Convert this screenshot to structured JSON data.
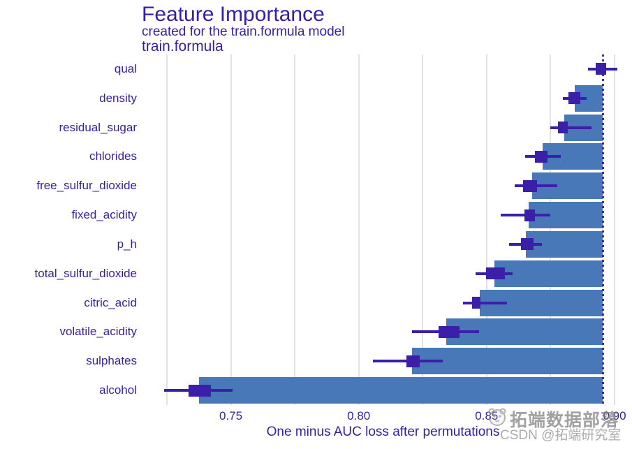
{
  "title": "Feature Importance",
  "subtitle": "created for the train.formula model",
  "facet_label": "train.formula",
  "watermark": {
    "icon": "mascot-face-icon",
    "line1": "拓端数据部落",
    "line2": "CSDN @拓端研究室"
  },
  "chart_data": {
    "type": "bar",
    "orientation": "horizontal",
    "title": "Feature Importance",
    "subtitle": "created for the train.formula model",
    "facet": "train.formula",
    "xlabel": "One minus AUC loss after permutations",
    "xlim": [
      0.716,
      0.903
    ],
    "x_ticks": [
      0.75,
      0.8,
      0.85,
      0.9
    ],
    "x_tick_labels": [
      "0.75",
      "0.80",
      "0.85",
      "0.90"
    ],
    "gridlines": [
      0.725,
      0.75,
      0.775,
      0.8,
      0.825,
      0.85,
      0.875,
      0.9
    ],
    "grid": true,
    "full_model_loss": 0.8954,
    "bars_end_at": "full_model_loss",
    "categories": [
      "qual",
      "density",
      "residual_sugar",
      "chlorides",
      "free_sulfur_dioxide",
      "fixed_acidity",
      "p_h",
      "total_sulfur_dioxide",
      "citric_acid",
      "volatile_acidity",
      "sulphates",
      "alcohol"
    ],
    "features": [
      {
        "name": "qual",
        "dropout_loss": 0.8954,
        "box": [
          0.8926,
          0.8966
        ],
        "whiskers": [
          0.8896,
          0.901
        ]
      },
      {
        "name": "density",
        "dropout_loss": 0.8844,
        "box": [
          0.882,
          0.8865
        ],
        "whiskers": [
          0.8798,
          0.8892
        ]
      },
      {
        "name": "residual_sugar",
        "dropout_loss": 0.8803,
        "box": [
          0.8779,
          0.8817
        ],
        "whiskers": [
          0.8749,
          0.8911
        ]
      },
      {
        "name": "chlorides",
        "dropout_loss": 0.8719,
        "box": [
          0.8689,
          0.8738
        ],
        "whiskers": [
          0.865,
          0.8789
        ]
      },
      {
        "name": "free_sulfur_dioxide",
        "dropout_loss": 0.8678,
        "box": [
          0.8642,
          0.8697
        ],
        "whiskers": [
          0.8609,
          0.8776
        ]
      },
      {
        "name": "fixed_acidity",
        "dropout_loss": 0.8664,
        "box": [
          0.8648,
          0.8689
        ],
        "whiskers": [
          0.8555,
          0.8748
        ]
      },
      {
        "name": "p_h",
        "dropout_loss": 0.8653,
        "box": [
          0.8634,
          0.8683
        ],
        "whiskers": [
          0.8587,
          0.8716
        ]
      },
      {
        "name": "total_sulfur_dioxide",
        "dropout_loss": 0.853,
        "box": [
          0.8497,
          0.8571
        ],
        "whiskers": [
          0.8456,
          0.8601
        ]
      },
      {
        "name": "citric_acid",
        "dropout_loss": 0.8473,
        "box": [
          0.8443,
          0.8476
        ],
        "whiskers": [
          0.8408,
          0.8579
        ]
      },
      {
        "name": "volatile_acidity",
        "dropout_loss": 0.8342,
        "box": [
          0.8312,
          0.8393
        ],
        "whiskers": [
          0.8208,
          0.847
        ]
      },
      {
        "name": "sulphates",
        "dropout_loss": 0.8208,
        "box": [
          0.8186,
          0.8238
        ],
        "whiskers": [
          0.8055,
          0.8328
        ]
      },
      {
        "name": "alcohol",
        "dropout_loss": 0.7377,
        "box": [
          0.7336,
          0.7423
        ],
        "whiskers": [
          0.724,
          0.7507
        ]
      }
    ],
    "colors": {
      "bar": "#4878b8",
      "boxplot": "#3b1fa8",
      "text": "#371ea3",
      "gridline": "#e2e2e2",
      "dashed_line": "#371ea3",
      "watermark": "#8c8c8c"
    },
    "legend_position": "none"
  }
}
